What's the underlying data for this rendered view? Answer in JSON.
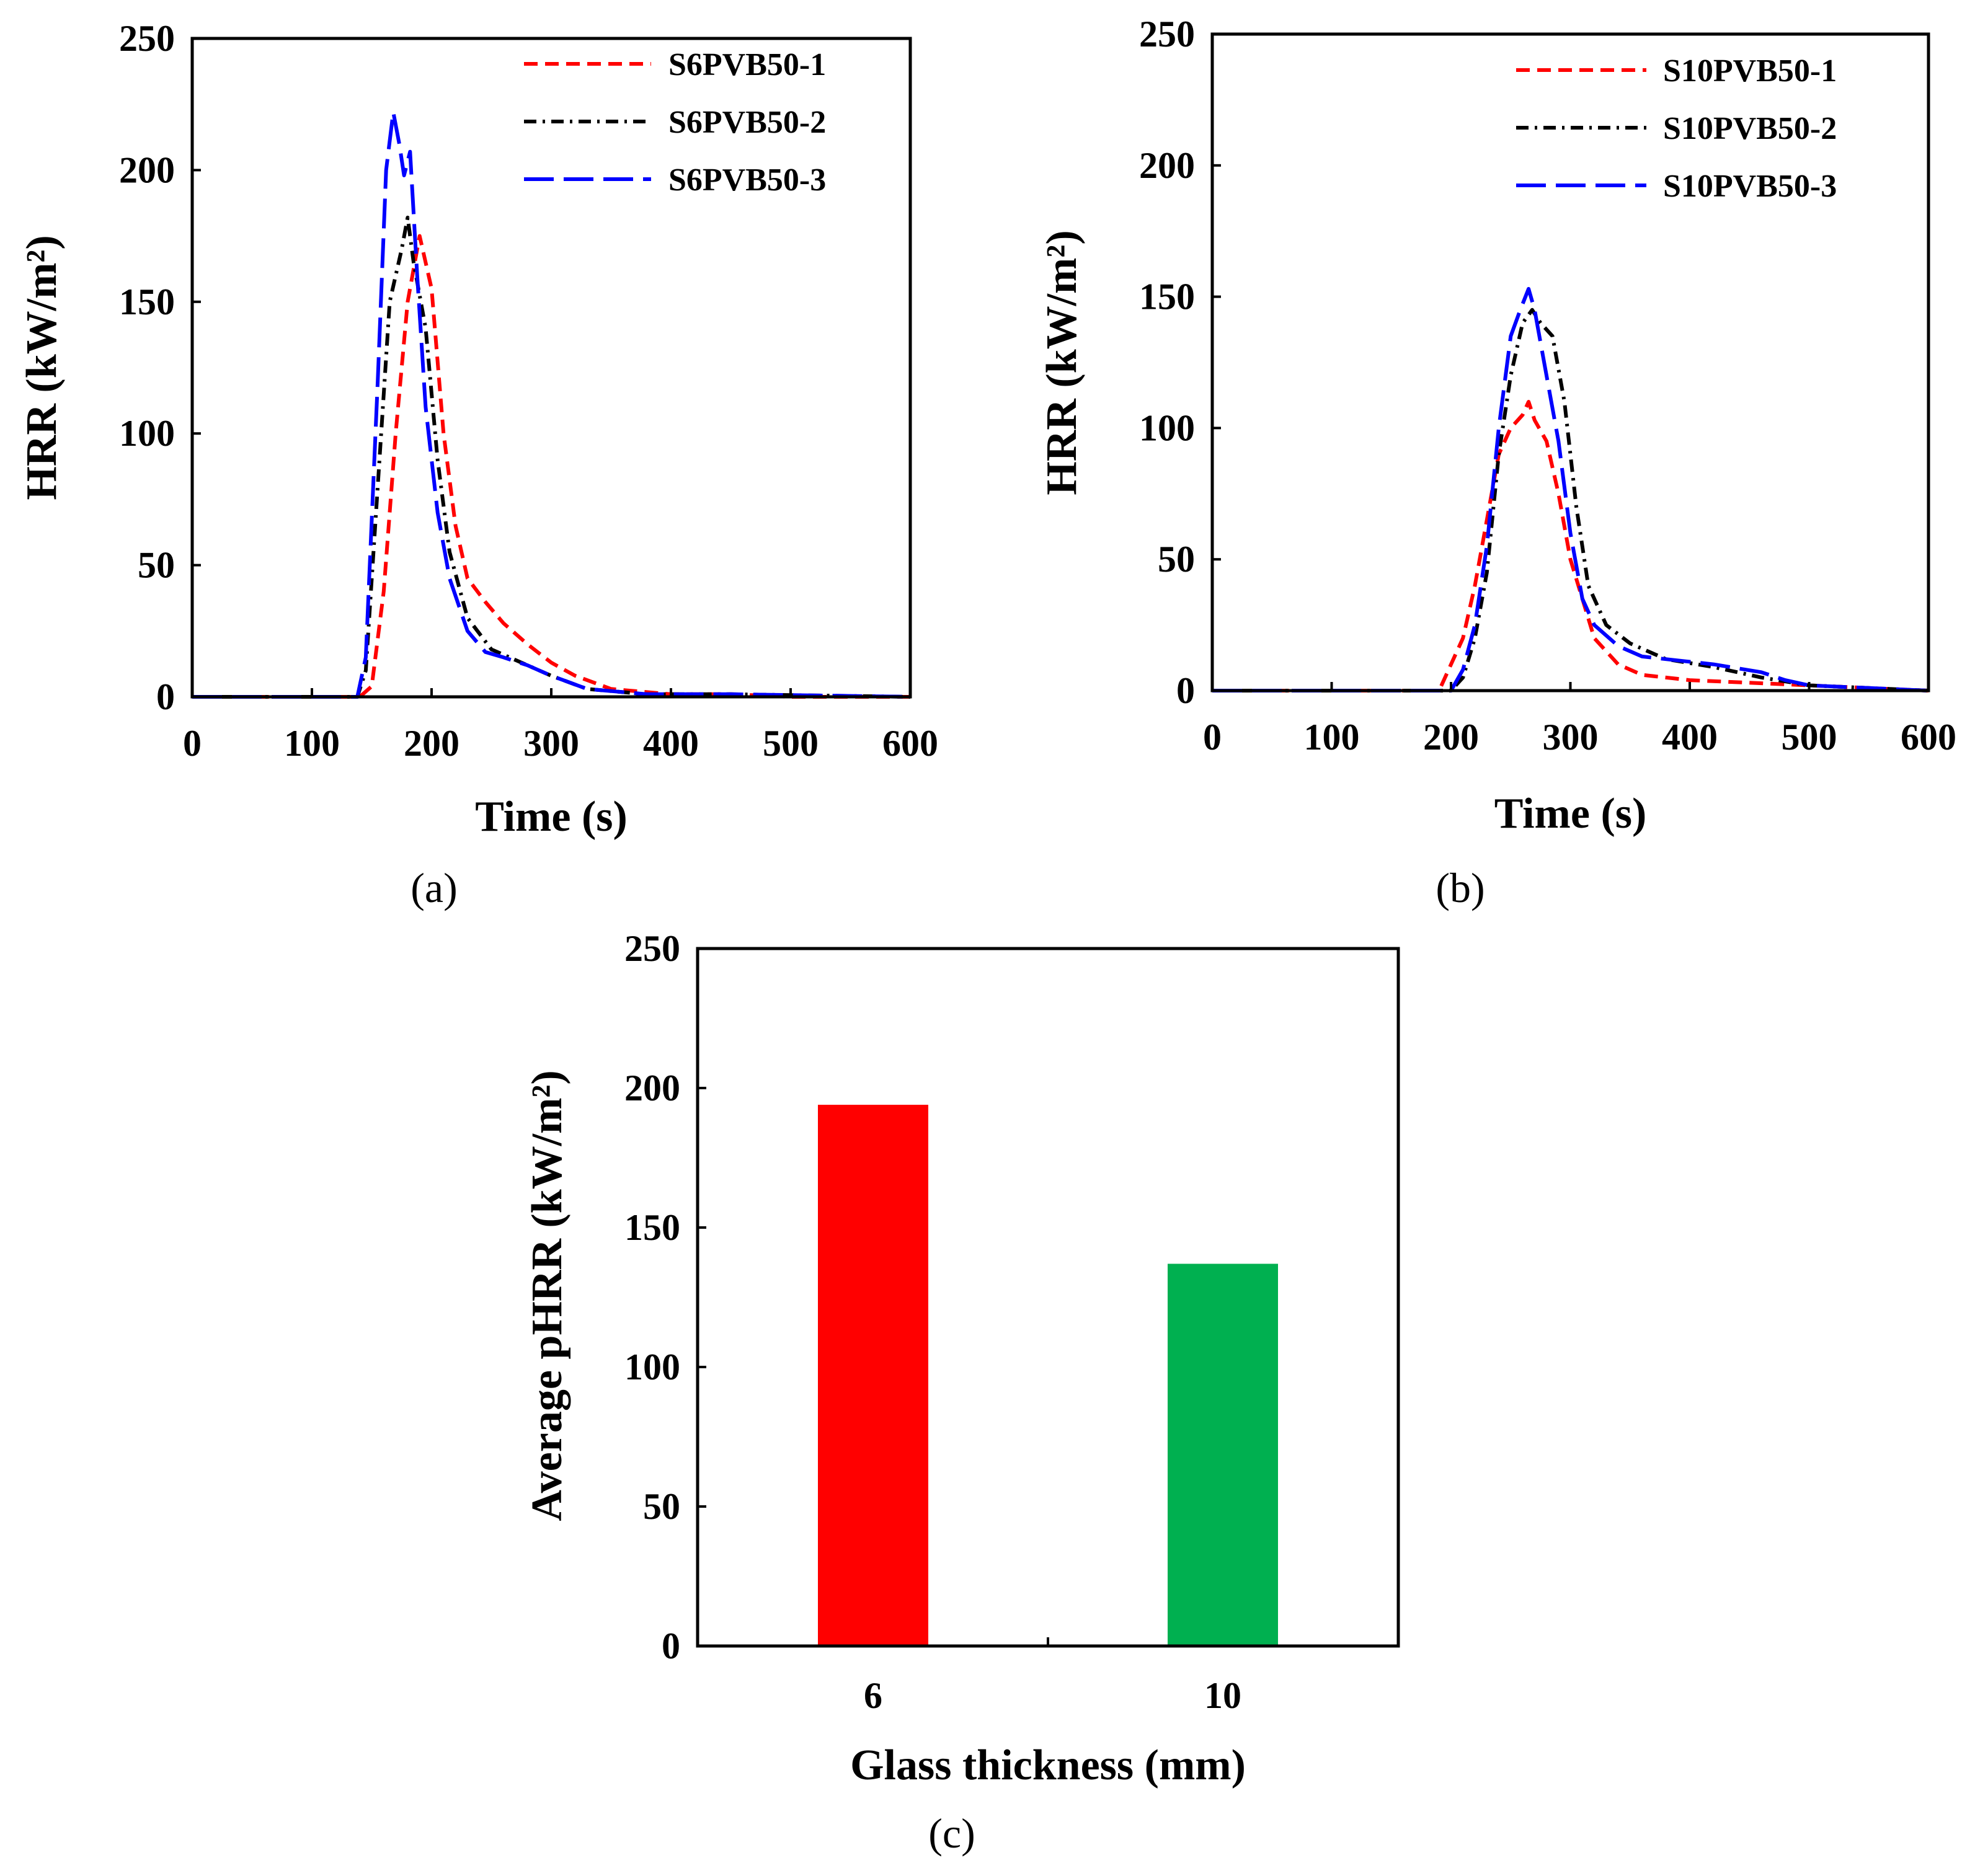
{
  "chart_data": [
    {
      "type": "line",
      "panel_label": "(a)",
      "xlabel": "Time (s)",
      "ylabel": "HRR (kW/m²)",
      "xlim": [
        0,
        600
      ],
      "ylim": [
        0,
        250
      ],
      "xticks": [
        0,
        100,
        200,
        300,
        400,
        500,
        600
      ],
      "yticks": [
        0,
        50,
        100,
        150,
        200,
        250
      ],
      "legend_position": "top-right",
      "series": [
        {
          "name": "S6PVB50-1",
          "color": "#ff0000",
          "dash": "short-dash",
          "x": [
            0,
            100,
            140,
            150,
            160,
            170,
            180,
            190,
            200,
            210,
            220,
            230,
            245,
            260,
            280,
            300,
            320,
            350,
            400,
            450,
            500,
            600
          ],
          "y": [
            0,
            0,
            0,
            4,
            40,
            100,
            150,
            175,
            155,
            100,
            65,
            45,
            36,
            28,
            20,
            13,
            8,
            3,
            1,
            1,
            0,
            0
          ]
        },
        {
          "name": "S6PVB50-2",
          "color": "#000000",
          "dash": "dash-dot",
          "x": [
            0,
            100,
            138,
            145,
            155,
            165,
            175,
            180,
            185,
            195,
            205,
            215,
            230,
            250,
            270,
            300,
            330,
            380,
            450,
            600
          ],
          "y": [
            0,
            0,
            0,
            10,
            80,
            150,
            170,
            182,
            165,
            140,
            90,
            55,
            30,
            18,
            14,
            8,
            3,
            1,
            1,
            0
          ]
        },
        {
          "name": "S6PVB50-3",
          "color": "#0000ff",
          "dash": "long-dash",
          "x": [
            0,
            100,
            138,
            145,
            155,
            162,
            168,
            173,
            177,
            182,
            188,
            195,
            205,
            215,
            230,
            245,
            260,
            280,
            300,
            330,
            380,
            450,
            600
          ],
          "y": [
            0,
            0,
            0,
            15,
            120,
            200,
            222,
            210,
            198,
            207,
            160,
            110,
            70,
            45,
            25,
            17,
            15,
            12,
            8,
            3,
            1,
            1,
            0
          ]
        }
      ]
    },
    {
      "type": "line",
      "panel_label": "(b)",
      "xlabel": "Time (s)",
      "ylabel": "HRR (kW/m²)",
      "xlim": [
        0,
        600
      ],
      "ylim": [
        0,
        250
      ],
      "xticks": [
        0,
        100,
        200,
        300,
        400,
        500,
        600
      ],
      "yticks": [
        0,
        50,
        100,
        150,
        200,
        250
      ],
      "legend_position": "top-right",
      "series": [
        {
          "name": "S10PVB50-1",
          "color": "#ff0000",
          "dash": "short-dash",
          "x": [
            0,
            150,
            190,
            200,
            210,
            220,
            230,
            240,
            250,
            260,
            265,
            270,
            280,
            290,
            300,
            310,
            320,
            340,
            360,
            400,
            450,
            500,
            550,
            600
          ],
          "y": [
            0,
            0,
            0,
            10,
            20,
            40,
            65,
            90,
            100,
            105,
            110,
            103,
            95,
            75,
            50,
            35,
            20,
            10,
            6,
            4,
            3,
            2,
            1,
            0
          ]
        },
        {
          "name": "S10PVB50-2",
          "color": "#000000",
          "dash": "dash-dot",
          "x": [
            0,
            150,
            200,
            210,
            220,
            230,
            240,
            250,
            260,
            268,
            275,
            285,
            295,
            305,
            315,
            330,
            350,
            380,
            420,
            460,
            500,
            550,
            600
          ],
          "y": [
            0,
            0,
            0,
            5,
            20,
            45,
            90,
            120,
            140,
            145,
            140,
            135,
            110,
            70,
            40,
            25,
            18,
            12,
            9,
            5,
            2,
            1,
            0
          ]
        },
        {
          "name": "S10PVB50-3",
          "color": "#0000ff",
          "dash": "long-dash",
          "x": [
            0,
            150,
            200,
            210,
            220,
            230,
            240,
            250,
            258,
            265,
            270,
            280,
            290,
            300,
            310,
            320,
            340,
            360,
            380,
            420,
            460,
            480,
            500,
            550,
            600
          ],
          "y": [
            0,
            0,
            0,
            8,
            25,
            55,
            100,
            135,
            145,
            153,
            145,
            120,
            95,
            60,
            35,
            25,
            17,
            13,
            12,
            10,
            7,
            4,
            2,
            1,
            0
          ]
        }
      ]
    },
    {
      "type": "bar",
      "panel_label": "(c)",
      "xlabel": "Glass thickness (mm)",
      "ylabel": "Average pHRR (kW/m²)",
      "ylim": [
        0,
        250
      ],
      "yticks": [
        0,
        50,
        100,
        150,
        200,
        250
      ],
      "categories": [
        "6",
        "10"
      ],
      "values": [
        194,
        137
      ],
      "colors": [
        "#ff0000",
        "#00b050"
      ]
    }
  ]
}
